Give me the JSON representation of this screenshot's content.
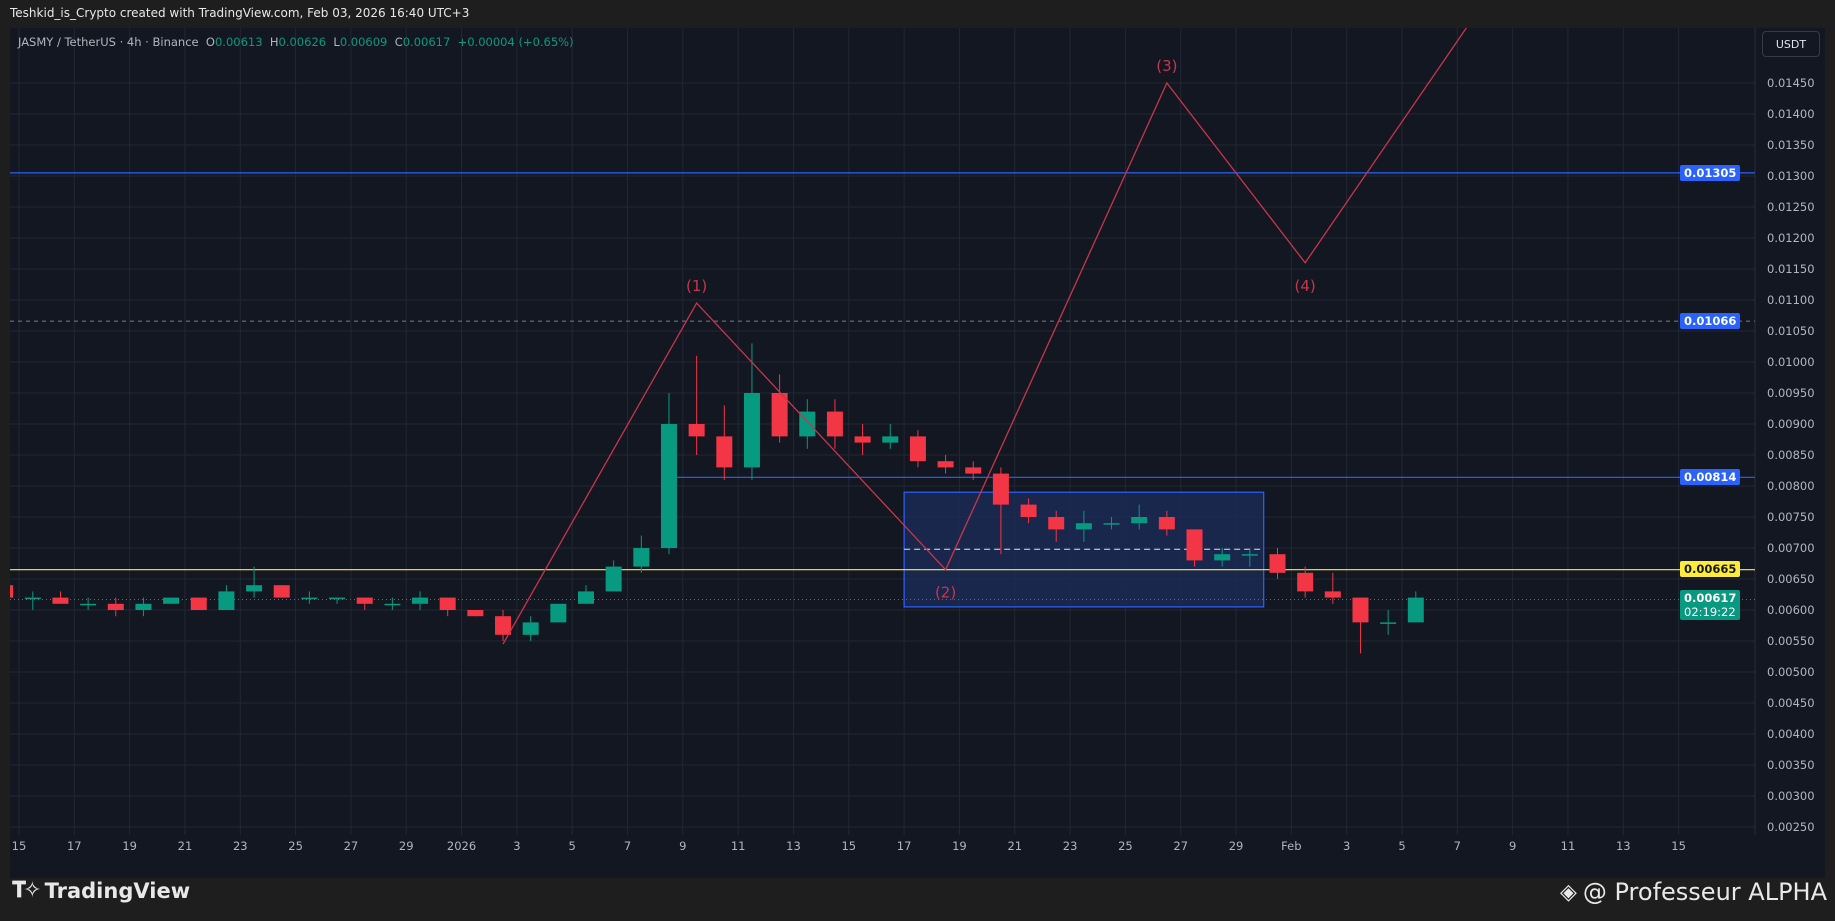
{
  "header": {
    "title": "Teshkid_is_Crypto created with TradingView.com, Feb 03, 2026 16:40 UTC+3"
  },
  "legend": {
    "symbol": "JASMY / TetherUS · 4h · Binance",
    "o_label": "O",
    "o": "0.00613",
    "h_label": "H",
    "h": "0.00626",
    "l_label": "L",
    "l": "0.00609",
    "c_label": "C",
    "c": "0.00617",
    "change": "+0.00004 (+0.65%)"
  },
  "currency_button": "USDT",
  "badges": {
    "level_1": "0.01305",
    "level_2": "0.01066",
    "level_3": "0.00814",
    "level_4": "0.00665",
    "last_price": "0.00617",
    "countdown": "02:19:22"
  },
  "colors": {
    "up": "#089981",
    "down": "#f23645",
    "blue_line": "#2962ff",
    "yellow_line": "#ffeb3b",
    "wave": "#c8354b",
    "box_fill": "#1c2a55"
  },
  "wave_labels": [
    "(1)",
    "(2)",
    "(3)",
    "(4)"
  ],
  "footer": {
    "brand": "TradingView",
    "credit": "@ Professeur ALPHA"
  },
  "chart_data": {
    "type": "candlestick",
    "title": "",
    "ylim": [
      0.0023,
      0.015
    ],
    "grid": true,
    "y_ticks": [
      "0.01450",
      "0.01400",
      "0.01350",
      "0.01300",
      "0.01250",
      "0.01200",
      "0.01150",
      "0.01100",
      "0.01050",
      "0.01000",
      "0.00950",
      "0.00900",
      "0.00850",
      "0.00800",
      "0.00750",
      "0.00700",
      "0.00650",
      "0.00600",
      "0.00550",
      "0.00500",
      "0.00450",
      "0.00400",
      "0.00350",
      "0.00300",
      "0.00250"
    ],
    "x_ticks": [
      "15",
      "17",
      "19",
      "21",
      "23",
      "25",
      "27",
      "29",
      "2026",
      "3",
      "5",
      "7",
      "9",
      "11",
      "13",
      "15",
      "17",
      "19",
      "21",
      "23",
      "25",
      "27",
      "29",
      "Feb",
      "3",
      "5",
      "7",
      "9",
      "11",
      "13",
      "15"
    ],
    "candles_daily_approx": {
      "dates": [
        "Dec 14",
        "Dec 15",
        "Dec 16",
        "Dec 17",
        "Dec 18",
        "Dec 19",
        "Dec 20",
        "Dec 21",
        "Dec 22",
        "Dec 23",
        "Dec 24",
        "Dec 25",
        "Dec 26",
        "Dec 27",
        "Dec 28",
        "Dec 29",
        "Dec 30",
        "Dec 31",
        "Jan 1",
        "Jan 2",
        "Jan 3",
        "Jan 4",
        "Jan 5",
        "Jan 6",
        "Jan 7",
        "Jan 8",
        "Jan 9",
        "Jan 10",
        "Jan 11",
        "Jan 12",
        "Jan 13",
        "Jan 14",
        "Jan 15",
        "Jan 16",
        "Jan 17",
        "Jan 18",
        "Jan 19",
        "Jan 20",
        "Jan 21",
        "Jan 22",
        "Jan 23",
        "Jan 24",
        "Jan 25",
        "Jan 26",
        "Jan 27",
        "Jan 28",
        "Jan 29",
        "Jan 30",
        "Jan 31",
        "Feb 1",
        "Feb 2",
        "Feb 3"
      ],
      "ohlc": [
        [
          0.0064,
          0.0065,
          0.0061,
          0.0062
        ],
        [
          0.0062,
          0.0063,
          0.006,
          0.0062
        ],
        [
          0.0062,
          0.0063,
          0.0061,
          0.0061
        ],
        [
          0.0061,
          0.0062,
          0.006,
          0.0061
        ],
        [
          0.0061,
          0.0062,
          0.0059,
          0.006
        ],
        [
          0.006,
          0.0062,
          0.0059,
          0.0061
        ],
        [
          0.0061,
          0.0062,
          0.0061,
          0.0062
        ],
        [
          0.0062,
          0.0062,
          0.006,
          0.006
        ],
        [
          0.006,
          0.0064,
          0.006,
          0.0063
        ],
        [
          0.0063,
          0.0067,
          0.0062,
          0.0064
        ],
        [
          0.0064,
          0.0064,
          0.0062,
          0.0062
        ],
        [
          0.0062,
          0.0063,
          0.0061,
          0.0062
        ],
        [
          0.0062,
          0.0062,
          0.0061,
          0.0062
        ],
        [
          0.0062,
          0.0062,
          0.006,
          0.0061
        ],
        [
          0.0061,
          0.0062,
          0.006,
          0.0061
        ],
        [
          0.0061,
          0.0063,
          0.006,
          0.0062
        ],
        [
          0.0062,
          0.0062,
          0.0059,
          0.006
        ],
        [
          0.006,
          0.006,
          0.0059,
          0.0059
        ],
        [
          0.0059,
          0.006,
          0.0055,
          0.0056
        ],
        [
          0.0056,
          0.0059,
          0.0055,
          0.0058
        ],
        [
          0.0058,
          0.0061,
          0.0058,
          0.0061
        ],
        [
          0.0061,
          0.0064,
          0.0061,
          0.0063
        ],
        [
          0.0063,
          0.0068,
          0.0063,
          0.0067
        ],
        [
          0.0067,
          0.0072,
          0.0066,
          0.007
        ],
        [
          0.007,
          0.0095,
          0.0069,
          0.009
        ],
        [
          0.009,
          0.0101,
          0.0085,
          0.0088
        ],
        [
          0.0088,
          0.0093,
          0.0081,
          0.0083
        ],
        [
          0.0083,
          0.0103,
          0.0081,
          0.0095
        ],
        [
          0.0095,
          0.0098,
          0.0087,
          0.0088
        ],
        [
          0.0088,
          0.0094,
          0.0086,
          0.0092
        ],
        [
          0.0092,
          0.0094,
          0.0086,
          0.0088
        ],
        [
          0.0088,
          0.009,
          0.0085,
          0.0087
        ],
        [
          0.0087,
          0.009,
          0.0086,
          0.0088
        ],
        [
          0.0088,
          0.0089,
          0.0083,
          0.0084
        ],
        [
          0.0084,
          0.0085,
          0.0082,
          0.0083
        ],
        [
          0.0083,
          0.0084,
          0.0081,
          0.0082
        ],
        [
          0.0082,
          0.0083,
          0.0069,
          0.0077
        ],
        [
          0.0077,
          0.0078,
          0.0074,
          0.0075
        ],
        [
          0.0075,
          0.0076,
          0.0071,
          0.0073
        ],
        [
          0.0073,
          0.0076,
          0.0071,
          0.0074
        ],
        [
          0.0074,
          0.0075,
          0.0073,
          0.0074
        ],
        [
          0.0074,
          0.0077,
          0.0073,
          0.0075
        ],
        [
          0.0075,
          0.0076,
          0.0072,
          0.0073
        ],
        [
          0.0073,
          0.0073,
          0.0067,
          0.0068
        ],
        [
          0.0068,
          0.007,
          0.0067,
          0.0069
        ],
        [
          0.0069,
          0.007,
          0.0067,
          0.0069
        ],
        [
          0.0069,
          0.007,
          0.0065,
          0.0066
        ],
        [
          0.0066,
          0.0067,
          0.0062,
          0.0063
        ],
        [
          0.0063,
          0.0066,
          0.0061,
          0.0062
        ],
        [
          0.0062,
          0.0062,
          0.0053,
          0.0058
        ],
        [
          0.0058,
          0.006,
          0.0056,
          0.0058
        ],
        [
          0.0058,
          0.0063,
          0.0058,
          0.0062
        ]
      ]
    },
    "horizontal_levels": [
      0.01305,
      0.01066,
      0.00814,
      0.00665,
      0.00617
    ],
    "range_box": {
      "from": "Jan 16",
      "to": "Jan 28",
      "top": 0.0079,
      "bottom": 0.00605,
      "mid": 0.00698
    },
    "wave_path": [
      {
        "date": "Jan 1",
        "price": 0.00545
      },
      {
        "date": "Jan 8",
        "price": 0.01095,
        "label": "(1)"
      },
      {
        "date": "Jan 17",
        "price": 0.00665,
        "label": "(2)"
      },
      {
        "date": "Jan 25",
        "price": 0.0145,
        "label": "(3)"
      },
      {
        "date": "Jan 30",
        "price": 0.0116,
        "label": "(4)"
      },
      {
        "date": "Feb 5",
        "price": 0.0155
      }
    ]
  }
}
